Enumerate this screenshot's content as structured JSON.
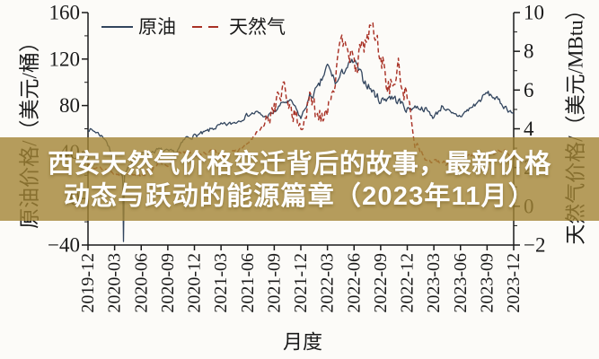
{
  "banner": {
    "line1": "西安天然气价格变迁背后的故事，最新价格",
    "line2": "动态与跃动的能源篇章（2023年11月）",
    "bg_color": "#a28434",
    "bg_opacity": 0.8,
    "text_color": "#ffffff"
  },
  "chart_data": {
    "type": "line",
    "xlabel": "月度",
    "x_start": "2019-12",
    "x_end": "2023-12",
    "x_interval": "monthly",
    "x_ticks": [
      "2019-12",
      "2020-03",
      "2020-06",
      "2020-09",
      "2020-12",
      "2021-03",
      "2021-06",
      "2021-09",
      "2021-12",
      "2022-03",
      "2022-06",
      "2022-09",
      "2022-12",
      "2023-03",
      "2023-06",
      "2023-09",
      "2023-12"
    ],
    "left_axis": {
      "label": "原油价格/（美元/桶）",
      "ticks": [
        160,
        120,
        80,
        40,
        0,
        -40
      ],
      "min": -40,
      "max": 160,
      "minor_step": 20
    },
    "right_axis": {
      "label": "天然气价格/（美元/MBtu）",
      "ticks": [
        10,
        8,
        6,
        4,
        2,
        0,
        -2
      ],
      "min": -2,
      "max": 10,
      "minor_step": 1
    },
    "legend": {
      "position": "top-left",
      "entries": [
        {
          "label": "原油",
          "color": "#32455e",
          "line": "solid"
        },
        {
          "label": "天然气",
          "color": "#a93226",
          "line": "dashed"
        }
      ]
    },
    "series": [
      {
        "name": "原油",
        "axis": "left",
        "monthly_values": [
          60,
          57,
          51,
          31,
          17,
          33,
          38,
          40,
          42,
          40,
          40,
          52,
          54,
          56,
          60,
          63,
          64,
          67,
          72,
          74,
          70,
          74,
          83,
          83,
          69,
          87,
          95,
          114,
          99,
          112,
          118,
          103,
          93,
          84,
          88,
          84,
          77,
          79,
          77,
          70,
          80,
          72,
          71,
          77,
          83,
          91,
          86,
          79,
          73
        ],
        "spike": {
          "month": "2020-04",
          "low": -37
        }
      },
      {
        "name": "天然气",
        "axis": "right",
        "monthly_values": [
          2.2,
          2.0,
          1.9,
          1.7,
          1.7,
          1.7,
          1.6,
          1.8,
          2.3,
          2.0,
          2.8,
          2.8,
          2.6,
          2.7,
          2.9,
          2.6,
          2.7,
          2.9,
          3.2,
          3.8,
          4.2,
          5.2,
          6.0,
          5.0,
          4.0,
          5.4,
          4.7,
          5.2,
          6.9,
          9.0,
          7.0,
          8.2,
          9.3,
          7.8,
          6.0,
          7.0,
          5.5,
          3.4,
          2.4,
          2.3,
          2.2,
          2.2,
          2.3,
          2.6,
          2.6,
          2.6,
          2.9,
          2.8,
          2.5
        ]
      }
    ],
    "axis_color": "#1a1a1a"
  }
}
